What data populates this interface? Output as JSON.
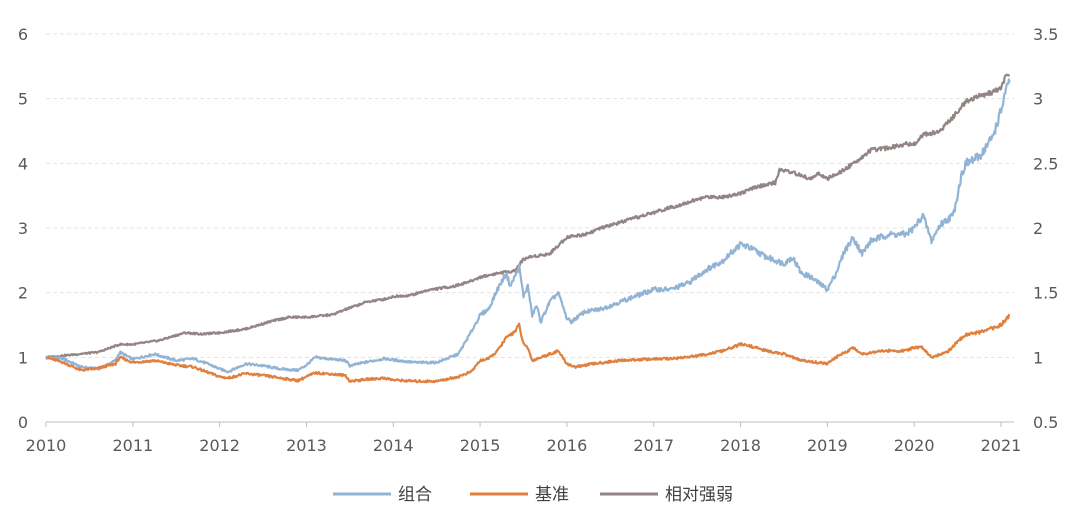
{
  "chart_data": {
    "type": "line",
    "title": "",
    "x_ticks": [
      "2010",
      "2011",
      "2012",
      "2013",
      "2014",
      "2015",
      "2016",
      "2017",
      "2018",
      "2019",
      "2020",
      "2021"
    ],
    "xlim": [
      2010,
      2021.15
    ],
    "y_left": {
      "lim": [
        0,
        6
      ],
      "ticks": [
        "0",
        "1",
        "2",
        "3",
        "4",
        "5",
        "6"
      ]
    },
    "y_right": {
      "lim": [
        0.5,
        3.5
      ],
      "ticks": [
        "0.5",
        "1",
        "1.5",
        "2",
        "2.5",
        "3",
        "3.5"
      ]
    },
    "grid": "horizontal dashed",
    "legend_position": "bottom",
    "series": [
      {
        "name": "组合",
        "axis": "left",
        "color": "#92B4D4",
        "points": [
          [
            2010.0,
            1.0
          ],
          [
            2010.2,
            0.98
          ],
          [
            2010.4,
            0.85
          ],
          [
            2010.6,
            0.82
          ],
          [
            2010.8,
            0.95
          ],
          [
            2010.85,
            1.08
          ],
          [
            2011.0,
            0.97
          ],
          [
            2011.25,
            1.05
          ],
          [
            2011.5,
            0.95
          ],
          [
            2011.7,
            0.98
          ],
          [
            2011.9,
            0.88
          ],
          [
            2012.0,
            0.82
          ],
          [
            2012.1,
            0.78
          ],
          [
            2012.3,
            0.9
          ],
          [
            2012.5,
            0.87
          ],
          [
            2012.7,
            0.82
          ],
          [
            2012.9,
            0.8
          ],
          [
            2013.0,
            0.88
          ],
          [
            2013.1,
            1.0
          ],
          [
            2013.3,
            0.97
          ],
          [
            2013.45,
            0.95
          ],
          [
            2013.5,
            0.87
          ],
          [
            2013.7,
            0.93
          ],
          [
            2013.9,
            0.98
          ],
          [
            2014.0,
            0.96
          ],
          [
            2014.25,
            0.92
          ],
          [
            2014.5,
            0.92
          ],
          [
            2014.75,
            1.05
          ],
          [
            2014.9,
            1.4
          ],
          [
            2015.0,
            1.65
          ],
          [
            2015.1,
            1.75
          ],
          [
            2015.2,
            2.05
          ],
          [
            2015.3,
            2.3
          ],
          [
            2015.35,
            2.1
          ],
          [
            2015.45,
            2.4
          ],
          [
            2015.5,
            1.95
          ],
          [
            2015.55,
            2.1
          ],
          [
            2015.6,
            1.65
          ],
          [
            2015.65,
            1.8
          ],
          [
            2015.7,
            1.55
          ],
          [
            2015.8,
            1.85
          ],
          [
            2015.9,
            2.0
          ],
          [
            2016.0,
            1.6
          ],
          [
            2016.05,
            1.55
          ],
          [
            2016.2,
            1.7
          ],
          [
            2016.4,
            1.75
          ],
          [
            2016.6,
            1.85
          ],
          [
            2016.8,
            1.95
          ],
          [
            2017.0,
            2.05
          ],
          [
            2017.2,
            2.05
          ],
          [
            2017.4,
            2.15
          ],
          [
            2017.6,
            2.35
          ],
          [
            2017.8,
            2.5
          ],
          [
            2018.0,
            2.75
          ],
          [
            2018.1,
            2.7
          ],
          [
            2018.3,
            2.55
          ],
          [
            2018.5,
            2.45
          ],
          [
            2018.6,
            2.55
          ],
          [
            2018.7,
            2.3
          ],
          [
            2018.8,
            2.25
          ],
          [
            2018.9,
            2.15
          ],
          [
            2019.0,
            2.05
          ],
          [
            2019.1,
            2.3
          ],
          [
            2019.2,
            2.65
          ],
          [
            2019.3,
            2.85
          ],
          [
            2019.4,
            2.6
          ],
          [
            2019.5,
            2.8
          ],
          [
            2019.7,
            2.9
          ],
          [
            2019.9,
            2.9
          ],
          [
            2020.0,
            3.0
          ],
          [
            2020.1,
            3.2
          ],
          [
            2020.2,
            2.8
          ],
          [
            2020.3,
            3.05
          ],
          [
            2020.45,
            3.2
          ],
          [
            2020.55,
            3.85
          ],
          [
            2020.6,
            4.0
          ],
          [
            2020.75,
            4.1
          ],
          [
            2020.9,
            4.4
          ],
          [
            2021.0,
            4.8
          ],
          [
            2021.05,
            5.1
          ],
          [
            2021.1,
            5.25
          ]
        ]
      },
      {
        "name": "基准",
        "axis": "left",
        "color": "#E0803E",
        "points": [
          [
            2010.0,
            1.0
          ],
          [
            2010.2,
            0.92
          ],
          [
            2010.4,
            0.8
          ],
          [
            2010.6,
            0.83
          ],
          [
            2010.8,
            0.9
          ],
          [
            2010.85,
            1.0
          ],
          [
            2011.0,
            0.92
          ],
          [
            2011.25,
            0.95
          ],
          [
            2011.5,
            0.88
          ],
          [
            2011.7,
            0.85
          ],
          [
            2011.9,
            0.75
          ],
          [
            2012.0,
            0.7
          ],
          [
            2012.1,
            0.68
          ],
          [
            2012.3,
            0.75
          ],
          [
            2012.5,
            0.72
          ],
          [
            2012.7,
            0.68
          ],
          [
            2012.9,
            0.64
          ],
          [
            2013.0,
            0.7
          ],
          [
            2013.1,
            0.76
          ],
          [
            2013.3,
            0.74
          ],
          [
            2013.45,
            0.72
          ],
          [
            2013.5,
            0.63
          ],
          [
            2013.7,
            0.66
          ],
          [
            2013.9,
            0.68
          ],
          [
            2014.0,
            0.65
          ],
          [
            2014.25,
            0.63
          ],
          [
            2014.5,
            0.63
          ],
          [
            2014.75,
            0.7
          ],
          [
            2014.9,
            0.78
          ],
          [
            2015.0,
            0.95
          ],
          [
            2015.1,
            0.98
          ],
          [
            2015.2,
            1.1
          ],
          [
            2015.3,
            1.3
          ],
          [
            2015.4,
            1.4
          ],
          [
            2015.45,
            1.5
          ],
          [
            2015.5,
            1.2
          ],
          [
            2015.55,
            1.15
          ],
          [
            2015.6,
            0.95
          ],
          [
            2015.7,
            1.0
          ],
          [
            2015.8,
            1.05
          ],
          [
            2015.9,
            1.1
          ],
          [
            2016.0,
            0.9
          ],
          [
            2016.1,
            0.85
          ],
          [
            2016.3,
            0.9
          ],
          [
            2016.6,
            0.95
          ],
          [
            2016.9,
            0.97
          ],
          [
            2017.2,
            0.98
          ],
          [
            2017.5,
            1.02
          ],
          [
            2017.8,
            1.1
          ],
          [
            2018.0,
            1.2
          ],
          [
            2018.1,
            1.18
          ],
          [
            2018.3,
            1.1
          ],
          [
            2018.5,
            1.05
          ],
          [
            2018.7,
            0.95
          ],
          [
            2018.9,
            0.92
          ],
          [
            2019.0,
            0.9
          ],
          [
            2019.1,
            1.0
          ],
          [
            2019.3,
            1.15
          ],
          [
            2019.4,
            1.05
          ],
          [
            2019.6,
            1.1
          ],
          [
            2019.9,
            1.1
          ],
          [
            2020.0,
            1.15
          ],
          [
            2020.1,
            1.15
          ],
          [
            2020.2,
            1.0
          ],
          [
            2020.4,
            1.1
          ],
          [
            2020.5,
            1.25
          ],
          [
            2020.6,
            1.35
          ],
          [
            2020.8,
            1.4
          ],
          [
            2021.0,
            1.5
          ],
          [
            2021.1,
            1.65
          ]
        ]
      },
      {
        "name": "相对强弱",
        "axis": "right",
        "color": "#948585",
        "points": [
          [
            2010.0,
            1.0
          ],
          [
            2010.3,
            1.02
          ],
          [
            2010.6,
            1.04
          ],
          [
            2010.85,
            1.1
          ],
          [
            2011.0,
            1.1
          ],
          [
            2011.3,
            1.13
          ],
          [
            2011.5,
            1.17
          ],
          [
            2011.6,
            1.19
          ],
          [
            2011.8,
            1.18
          ],
          [
            2012.0,
            1.19
          ],
          [
            2012.3,
            1.22
          ],
          [
            2012.6,
            1.28
          ],
          [
            2012.8,
            1.31
          ],
          [
            2013.0,
            1.31
          ],
          [
            2013.3,
            1.33
          ],
          [
            2013.45,
            1.37
          ],
          [
            2013.7,
            1.43
          ],
          [
            2013.9,
            1.45
          ],
          [
            2014.0,
            1.47
          ],
          [
            2014.2,
            1.48
          ],
          [
            2014.4,
            1.52
          ],
          [
            2014.7,
            1.55
          ],
          [
            2014.9,
            1.59
          ],
          [
            2015.0,
            1.62
          ],
          [
            2015.2,
            1.65
          ],
          [
            2015.4,
            1.67
          ],
          [
            2015.5,
            1.76
          ],
          [
            2015.6,
            1.78
          ],
          [
            2015.8,
            1.8
          ],
          [
            2016.0,
            1.93
          ],
          [
            2016.2,
            1.95
          ],
          [
            2016.4,
            2.0
          ],
          [
            2016.6,
            2.04
          ],
          [
            2016.9,
            2.1
          ],
          [
            2017.1,
            2.14
          ],
          [
            2017.4,
            2.2
          ],
          [
            2017.6,
            2.24
          ],
          [
            2017.8,
            2.24
          ],
          [
            2018.0,
            2.27
          ],
          [
            2018.2,
            2.32
          ],
          [
            2018.4,
            2.35
          ],
          [
            2018.45,
            2.45
          ],
          [
            2018.6,
            2.43
          ],
          [
            2018.8,
            2.38
          ],
          [
            2018.9,
            2.42
          ],
          [
            2019.0,
            2.38
          ],
          [
            2019.15,
            2.43
          ],
          [
            2019.3,
            2.5
          ],
          [
            2019.5,
            2.6
          ],
          [
            2019.7,
            2.62
          ],
          [
            2019.9,
            2.65
          ],
          [
            2020.0,
            2.65
          ],
          [
            2020.1,
            2.72
          ],
          [
            2020.3,
            2.75
          ],
          [
            2020.5,
            2.9
          ],
          [
            2020.6,
            2.98
          ],
          [
            2020.75,
            3.02
          ],
          [
            2020.9,
            3.05
          ],
          [
            2021.0,
            3.08
          ],
          [
            2021.05,
            3.17
          ],
          [
            2021.1,
            3.18
          ]
        ]
      }
    ]
  }
}
